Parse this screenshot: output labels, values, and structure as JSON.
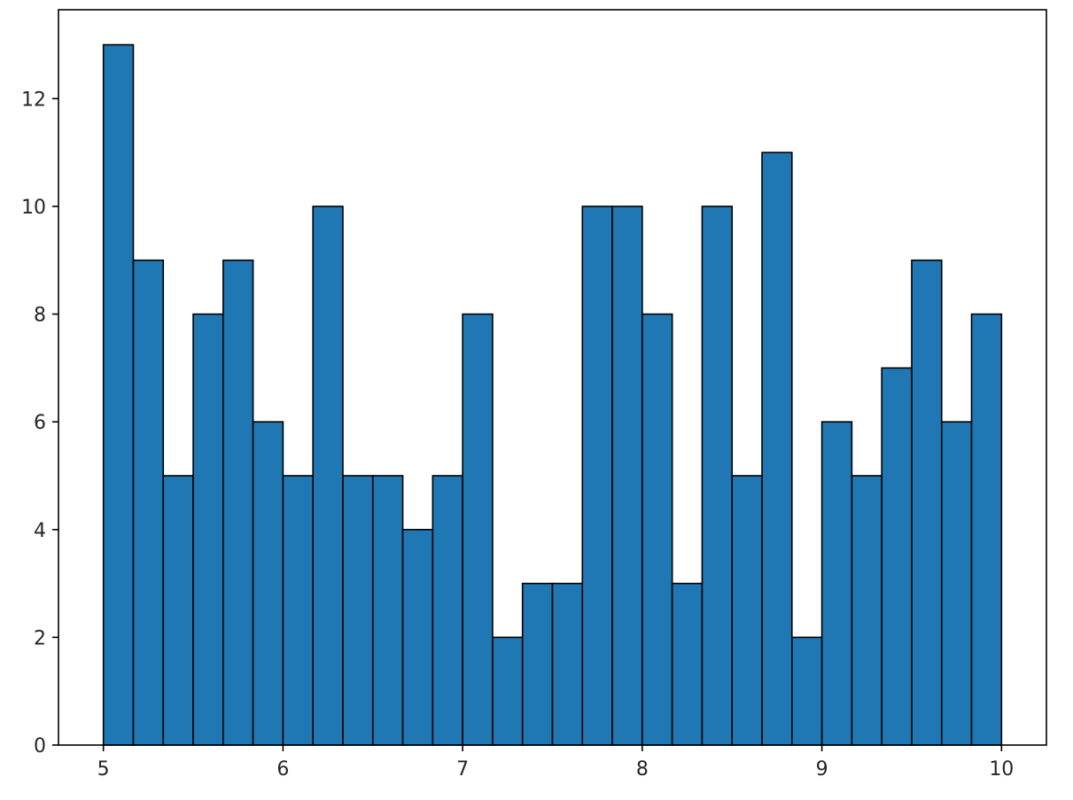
{
  "chart_data": {
    "type": "bar",
    "subtype": "histogram",
    "bin_edges": [
      5.0,
      5.1667,
      5.3333,
      5.5,
      5.6667,
      5.8333,
      6.0,
      6.1667,
      6.3333,
      6.5,
      6.6667,
      6.8333,
      7.0,
      7.1667,
      7.3333,
      7.5,
      7.6667,
      7.8333,
      8.0,
      8.1667,
      8.3333,
      8.5,
      8.6667,
      8.8333,
      9.0,
      9.1667,
      9.3333,
      9.5,
      9.6667,
      9.8333,
      10.0
    ],
    "values": [
      13,
      9,
      5,
      8,
      9,
      6,
      5,
      10,
      5,
      5,
      4,
      5,
      8,
      2,
      3,
      3,
      10,
      10,
      8,
      3,
      10,
      5,
      11,
      2,
      6,
      5,
      7,
      9,
      6,
      8
    ],
    "title": "",
    "xlabel": "",
    "ylabel": "",
    "xlim": [
      4.75,
      10.25
    ],
    "ylim": [
      0,
      13.65
    ],
    "xticks": [
      5,
      6,
      7,
      8,
      9,
      10
    ],
    "xtick_labels": [
      "5",
      "6",
      "7",
      "8",
      "9",
      "10"
    ],
    "yticks": [
      0,
      2,
      4,
      6,
      8,
      10,
      12
    ],
    "ytick_labels": [
      "0",
      "2",
      "4",
      "6",
      "8",
      "10",
      "12"
    ],
    "grid": false,
    "legend": false,
    "colors": {
      "bar_fill": "#1f77b4",
      "bar_edge": "#000000",
      "axes": "#000000",
      "text": "#262626"
    }
  }
}
